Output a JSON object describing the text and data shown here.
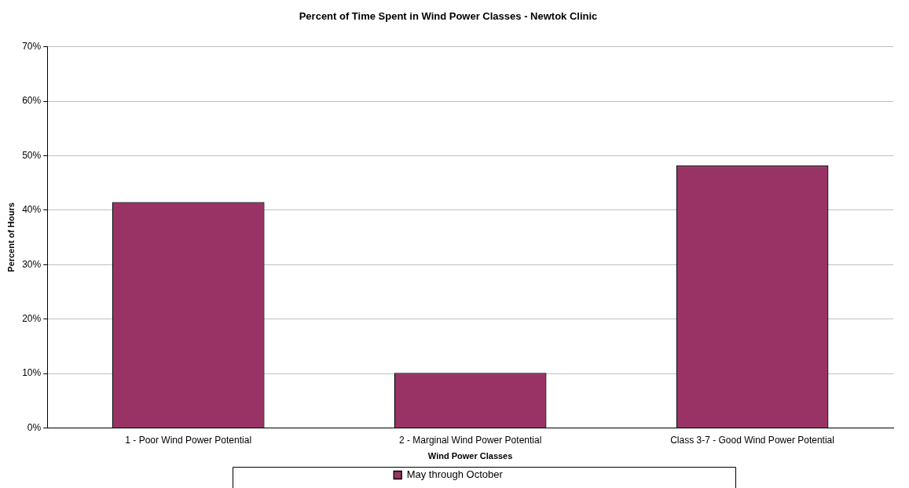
{
  "chart_data": {
    "type": "bar",
    "title": "Percent of Time Spent in Wind Power Classes - Newtok Clinic",
    "xlabel": "Wind Power Classes",
    "ylabel": "Percent of Hours",
    "categories": [
      "1 - Poor Wind Power Potential",
      "2 - Marginal Wind Power Potential",
      "Class 3-7 - Good Wind Power Potential"
    ],
    "series": [
      {
        "name": "May through October",
        "color": "#993366",
        "values": [
          41.5,
          10.1,
          48.2
        ]
      }
    ],
    "ylim": [
      0,
      70
    ],
    "yticks": [
      {
        "value": 0,
        "label": "0%"
      },
      {
        "value": 10,
        "label": "10%"
      },
      {
        "value": 20,
        "label": "20%"
      },
      {
        "value": 30,
        "label": "30%"
      },
      {
        "value": 40,
        "label": "40%"
      },
      {
        "value": 50,
        "label": "50%"
      },
      {
        "value": 60,
        "label": "60%"
      },
      {
        "value": 70,
        "label": "70%"
      }
    ],
    "grid": "y",
    "legend": "bottom"
  }
}
